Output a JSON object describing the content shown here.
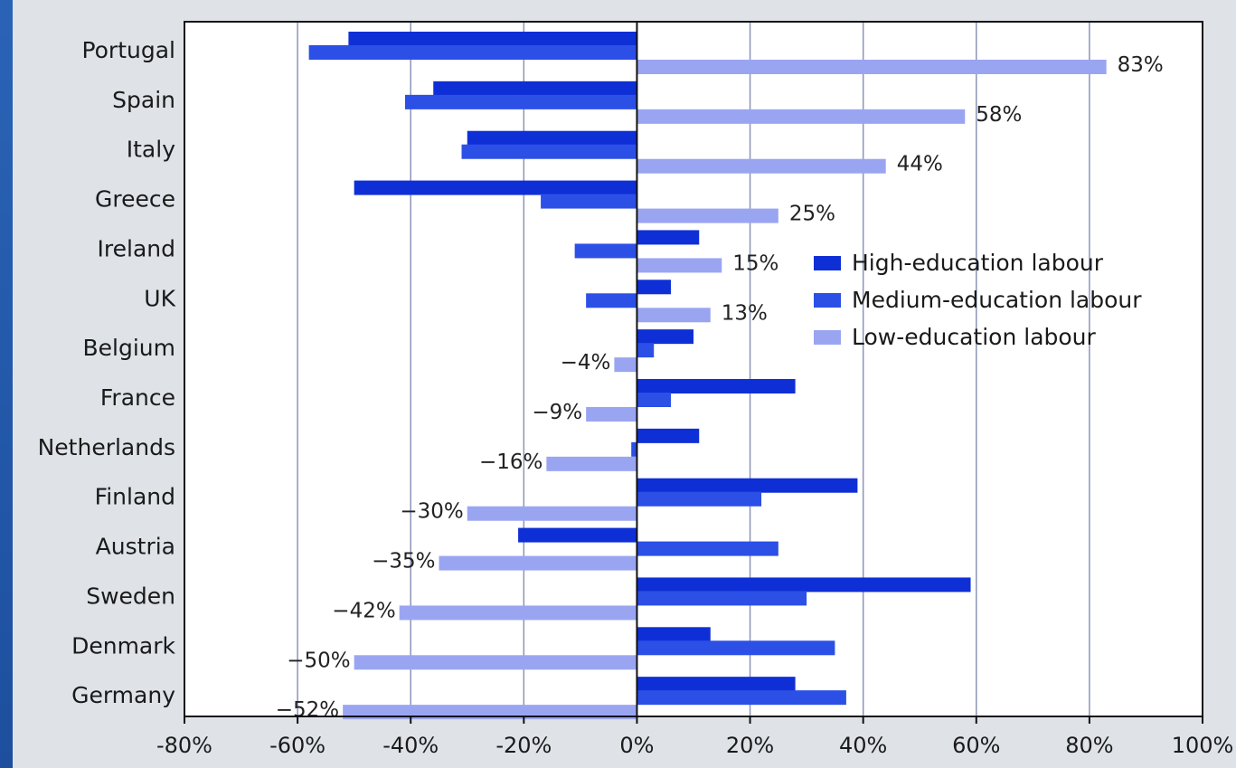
{
  "chart_data": {
    "type": "bar",
    "orientation": "horizontal",
    "categories": [
      "Portugal",
      "Spain",
      "Italy",
      "Greece",
      "Ireland",
      "UK",
      "Belgium",
      "France",
      "Netherlands",
      "Finland",
      "Austria",
      "Sweden",
      "Denmark",
      "Germany"
    ],
    "series": [
      {
        "name": "High-education labour",
        "color": "#0f2fd6",
        "values": [
          -51,
          -36,
          -30,
          -50,
          11,
          6,
          10,
          28,
          11,
          39,
          -21,
          59,
          13,
          28
        ]
      },
      {
        "name": "Medium-education labour",
        "color": "#2c4fe6",
        "values": [
          -58,
          -41,
          -31,
          -17,
          -11,
          -9,
          3,
          6,
          -1,
          22,
          25,
          30,
          35,
          37
        ]
      },
      {
        "name": "Low-education labour",
        "color": "#9aa5f2",
        "values": [
          83,
          58,
          44,
          25,
          15,
          13,
          -4,
          -9,
          -16,
          -30,
          -35,
          -42,
          -50,
          -52
        ]
      }
    ],
    "low_labels": [
      "83%",
      "58%",
      "44%",
      "25%",
      "15%",
      "13%",
      "−4%",
      "−9%",
      "−16%",
      "−30%",
      "−35%",
      "−42%",
      "−50%",
      "−52%"
    ],
    "xlim": [
      -80,
      100
    ],
    "xticks": [
      -80,
      -60,
      -40,
      -20,
      0,
      20,
      40,
      60,
      80,
      100
    ],
    "xtick_labels": [
      "-80%",
      "-60%",
      "-40%",
      "-20%",
      "0%",
      "20%",
      "40%",
      "60%",
      "80%",
      "100%"
    ],
    "grid": true,
    "legend_position": "right-middle",
    "title": "",
    "xlabel": "",
    "ylabel": ""
  }
}
